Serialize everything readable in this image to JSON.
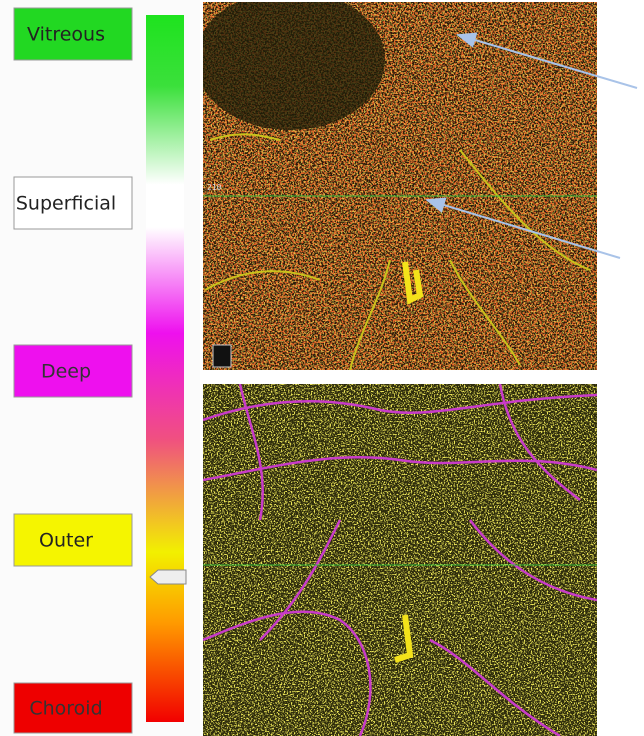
{
  "layer_buttons": [
    {
      "label": "Vitreous"
    },
    {
      "label": "Superficial"
    },
    {
      "label": "Deep"
    },
    {
      "label": "Outer"
    },
    {
      "label": "Choroid"
    }
  ],
  "top_image": {
    "depth_label": "210"
  }
}
